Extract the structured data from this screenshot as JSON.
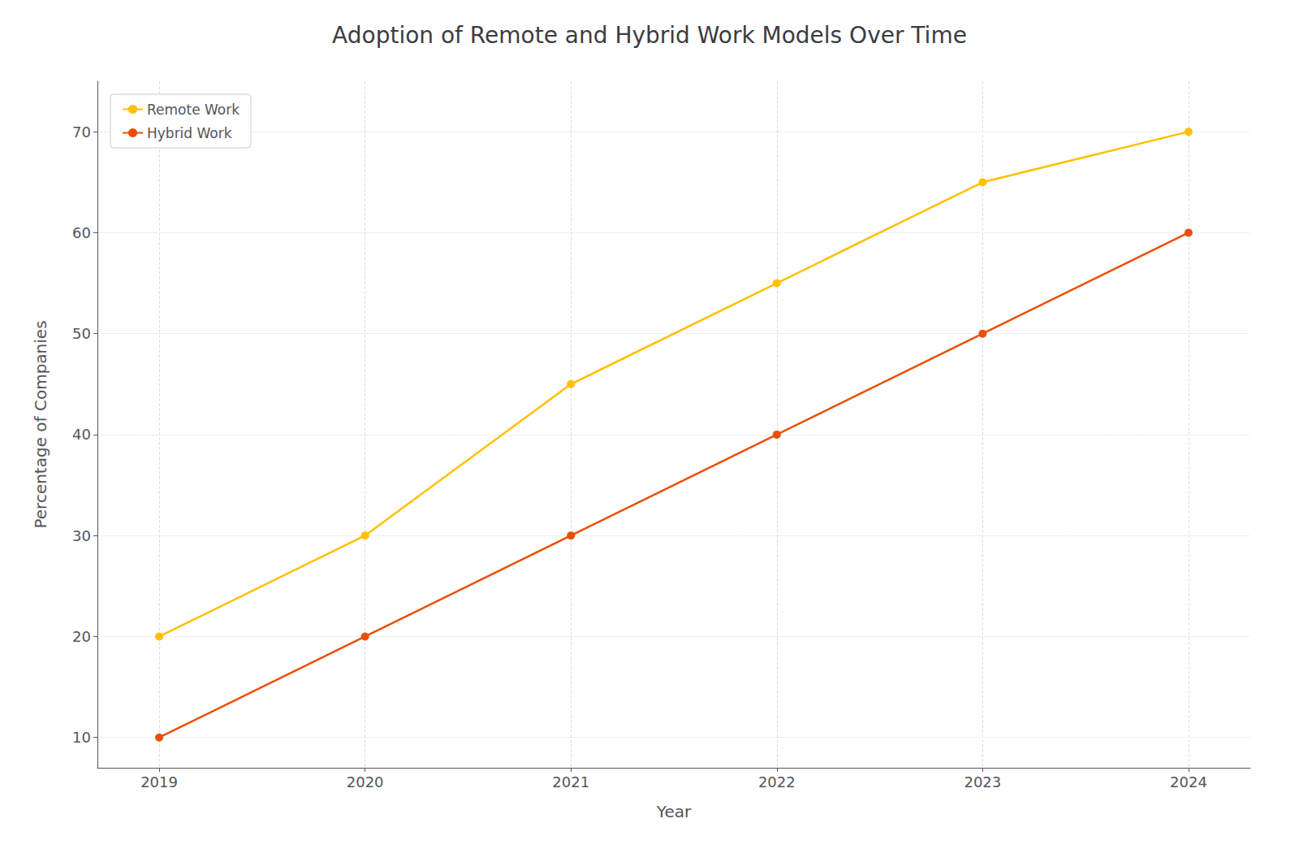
{
  "chart_data": {
    "type": "line",
    "title": "Adoption of Remote and Hybrid Work Models Over Time",
    "xlabel": "Year",
    "ylabel": "Percentage of Companies",
    "x": [
      2019,
      2020,
      2021,
      2022,
      2023,
      2024
    ],
    "series": [
      {
        "name": "Remote Work",
        "color": "#FFC000",
        "marker": "circle",
        "values": [
          20,
          30,
          45,
          55,
          65,
          70
        ]
      },
      {
        "name": "Hybrid Work",
        "color": "#E85000",
        "marker": "circle",
        "values": [
          10,
          20,
          30,
          40,
          50,
          60
        ]
      }
    ],
    "xlim": [
      2018.7,
      2024.3
    ],
    "xticks": [
      2019,
      2020,
      2021,
      2022,
      2023,
      2024
    ],
    "ylim": [
      7,
      75
    ],
    "yticks": [
      10,
      20,
      30,
      40,
      50,
      60,
      70
    ],
    "grid": true,
    "legend": "upper left"
  }
}
